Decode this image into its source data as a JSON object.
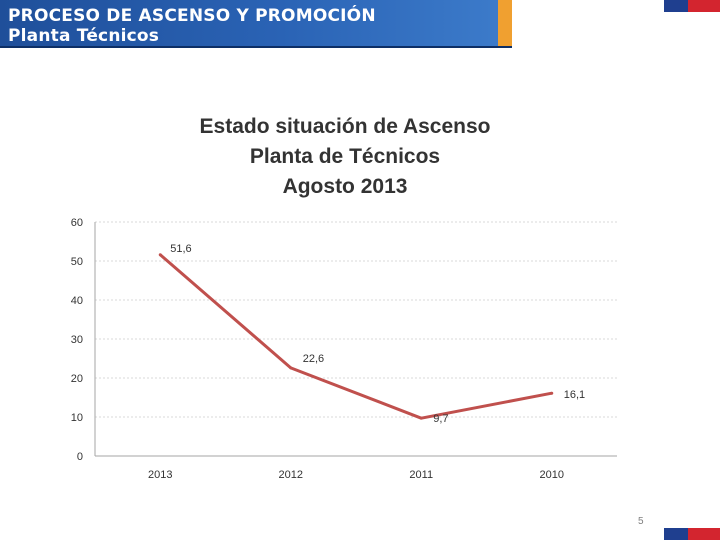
{
  "header": {
    "title_line1": "PROCESO DE ASCENSO Y PROMOCIÓN",
    "title_line2": "Planta Técnicos"
  },
  "colors": {
    "header_blue": "#1f4f9a",
    "header_orange": "#f0a030",
    "series_line": "#c0504d",
    "flag_blue": "#1f3f8f",
    "flag_red": "#d3252f"
  },
  "chart_data": {
    "type": "line",
    "title": "Estado situación de Ascenso",
    "subtitle": "Planta de Técnicos",
    "subtitle2": "Agosto 2013",
    "categories": [
      "2013",
      "2012",
      "2011",
      "2010"
    ],
    "series": [
      {
        "values": [
          51.6,
          22.6,
          9.7,
          16.1
        ],
        "labels": [
          "51,6",
          "22,6",
          "9,7",
          "16,1"
        ]
      }
    ],
    "ylim": [
      0,
      60
    ],
    "yticks": [
      0,
      10,
      20,
      30,
      40,
      50,
      60
    ],
    "grid": true,
    "xlabel": "",
    "ylabel": ""
  },
  "page_number": "5"
}
